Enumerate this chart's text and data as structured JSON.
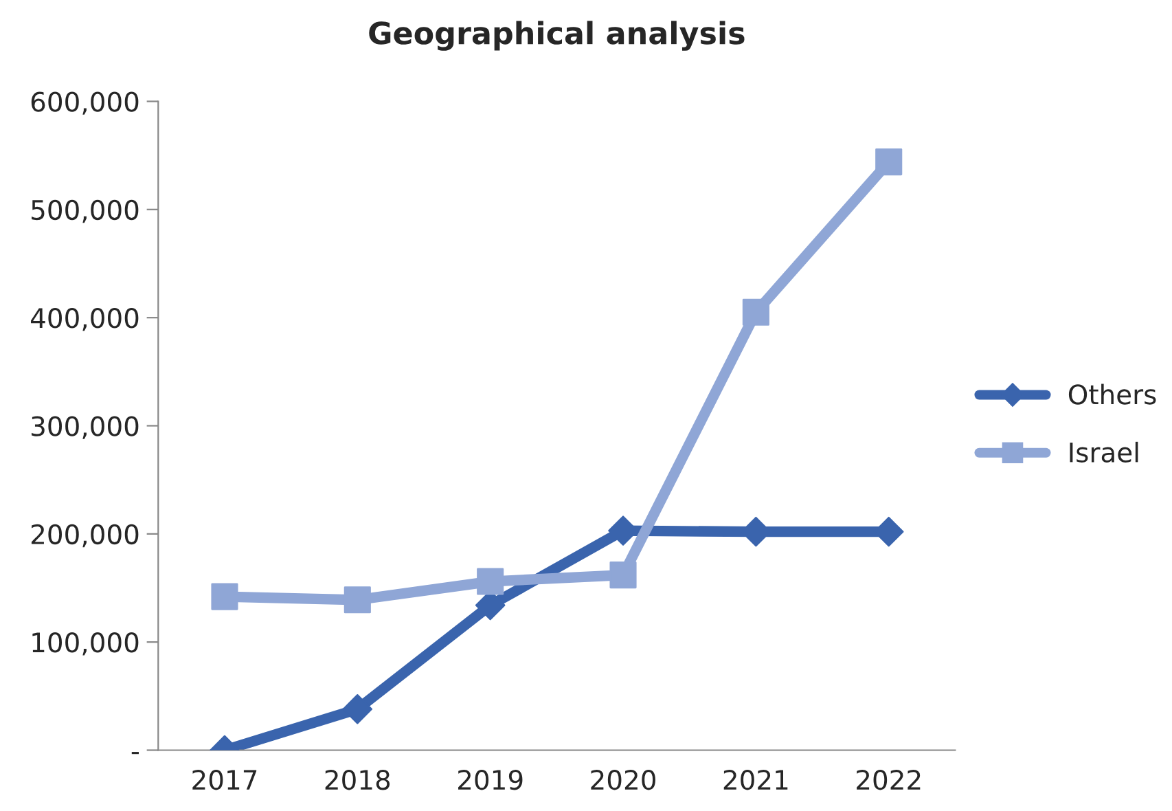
{
  "chart_data": {
    "type": "line",
    "title": "Geographical analysis",
    "categories": [
      "2017",
      "2018",
      "2019",
      "2020",
      "2021",
      "2022"
    ],
    "series": [
      {
        "name": "Others",
        "color": "#3a64ad",
        "marker": "diamond",
        "values": [
          0,
          38000,
          134000,
          203000,
          202000,
          202000
        ]
      },
      {
        "name": "Israel",
        "color": "#8fa6d6",
        "marker": "square",
        "values": [
          142000,
          139000,
          156000,
          162000,
          405000,
          544000
        ]
      }
    ],
    "ylim": [
      0,
      600000
    ],
    "yticks": [
      {
        "value": 0,
        "label": "-"
      },
      {
        "value": 100000,
        "label": "100,000"
      },
      {
        "value": 200000,
        "label": "200,000"
      },
      {
        "value": 300000,
        "label": "300,000"
      },
      {
        "value": 400000,
        "label": "400,000"
      },
      {
        "value": 500000,
        "label": "500,000"
      },
      {
        "value": 600000,
        "label": "600,000"
      }
    ],
    "grid": false,
    "legend": "right",
    "line_style": "solid"
  }
}
